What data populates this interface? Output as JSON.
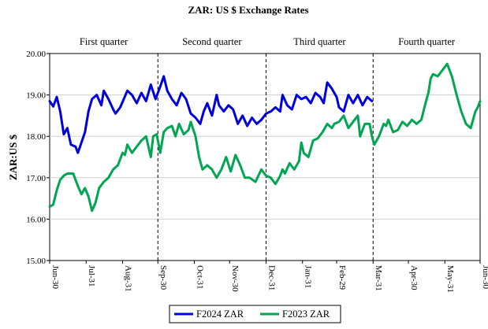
{
  "chart_data": {
    "type": "line",
    "title": "ZAR: US $ Exchange Rates",
    "ylabel": "ZAR:US $",
    "xlabel": "",
    "ylim": [
      15.0,
      20.0
    ],
    "yticks": [
      "15.00",
      "16.00",
      "17.00",
      "18.00",
      "19.00",
      "20.00"
    ],
    "x_range_days": [
      0,
      366
    ],
    "xticks": [
      {
        "label": "Jun-30",
        "day": 0
      },
      {
        "label": "Jul-31",
        "day": 31
      },
      {
        "label": "Aug-31",
        "day": 62
      },
      {
        "label": "Sep-30",
        "day": 92
      },
      {
        "label": "Oct-31",
        "day": 123
      },
      {
        "label": "Nov-30",
        "day": 153
      },
      {
        "label": "Dec-31",
        "day": 184
      },
      {
        "label": "Jan-31",
        "day": 215
      },
      {
        "label": "Feb-29",
        "day": 244
      },
      {
        "label": "Mar-31",
        "day": 275
      },
      {
        "label": "Apr-30",
        "day": 305
      },
      {
        "label": "May-31",
        "day": 336
      },
      {
        "label": "Jun-30",
        "day": 366
      }
    ],
    "quarter_dividers_days": [
      92,
      184,
      275,
      366
    ],
    "quarter_labels": [
      "First quarter",
      "Second quarter",
      "Third quarter",
      "Fourth quarter"
    ],
    "series": [
      {
        "name": "F2024 ZAR",
        "color": "#0000dd",
        "points": [
          [
            0,
            18.85
          ],
          [
            3,
            18.72
          ],
          [
            6,
            18.95
          ],
          [
            9,
            18.6
          ],
          [
            12,
            18.05
          ],
          [
            15,
            18.2
          ],
          [
            18,
            17.8
          ],
          [
            22,
            17.75
          ],
          [
            24,
            17.6
          ],
          [
            27,
            17.85
          ],
          [
            30,
            18.1
          ],
          [
            33,
            18.6
          ],
          [
            36,
            18.9
          ],
          [
            40,
            19.0
          ],
          [
            44,
            18.75
          ],
          [
            46,
            19.1
          ],
          [
            50,
            18.9
          ],
          [
            54,
            18.65
          ],
          [
            56,
            18.55
          ],
          [
            60,
            18.7
          ],
          [
            63,
            18.9
          ],
          [
            66,
            19.1
          ],
          [
            70,
            19.0
          ],
          [
            74,
            18.8
          ],
          [
            78,
            19.05
          ],
          [
            82,
            18.85
          ],
          [
            86,
            19.25
          ],
          [
            90,
            18.9
          ],
          [
            94,
            19.2
          ],
          [
            97,
            19.45
          ],
          [
            100,
            19.1
          ],
          [
            104,
            18.9
          ],
          [
            108,
            18.75
          ],
          [
            112,
            19.05
          ],
          [
            116,
            18.9
          ],
          [
            120,
            18.55
          ],
          [
            124,
            18.45
          ],
          [
            128,
            18.3
          ],
          [
            131,
            18.6
          ],
          [
            134,
            18.8
          ],
          [
            138,
            18.5
          ],
          [
            142,
            19.0
          ],
          [
            144,
            18.75
          ],
          [
            148,
            18.6
          ],
          [
            152,
            18.75
          ],
          [
            156,
            18.65
          ],
          [
            160,
            18.3
          ],
          [
            164,
            18.5
          ],
          [
            168,
            18.25
          ],
          [
            172,
            18.45
          ],
          [
            176,
            18.3
          ],
          [
            180,
            18.4
          ],
          [
            184,
            18.55
          ],
          [
            188,
            18.6
          ],
          [
            192,
            18.7
          ],
          [
            196,
            18.6
          ],
          [
            198,
            19.0
          ],
          [
            202,
            18.75
          ],
          [
            206,
            18.65
          ],
          [
            210,
            19.0
          ],
          [
            214,
            18.9
          ],
          [
            218,
            18.95
          ],
          [
            222,
            18.8
          ],
          [
            226,
            19.05
          ],
          [
            230,
            18.95
          ],
          [
            233,
            18.8
          ],
          [
            236,
            19.3
          ],
          [
            240,
            19.15
          ],
          [
            244,
            18.95
          ],
          [
            246,
            18.7
          ],
          [
            250,
            18.6
          ],
          [
            254,
            19.0
          ],
          [
            258,
            18.8
          ],
          [
            262,
            19.0
          ],
          [
            266,
            18.75
          ],
          [
            270,
            18.95
          ],
          [
            274,
            18.85
          ]
        ]
      },
      {
        "name": "F2023 ZAR",
        "color": "#00a651",
        "points": [
          [
            0,
            16.3
          ],
          [
            3,
            16.35
          ],
          [
            6,
            16.7
          ],
          [
            9,
            16.95
          ],
          [
            12,
            17.05
          ],
          [
            15,
            17.1
          ],
          [
            20,
            17.1
          ],
          [
            24,
            16.8
          ],
          [
            27,
            16.6
          ],
          [
            30,
            16.75
          ],
          [
            33,
            16.55
          ],
          [
            36,
            16.2
          ],
          [
            39,
            16.4
          ],
          [
            42,
            16.75
          ],
          [
            46,
            16.9
          ],
          [
            50,
            17.0
          ],
          [
            54,
            17.2
          ],
          [
            58,
            17.3
          ],
          [
            62,
            17.6
          ],
          [
            64,
            17.55
          ],
          [
            66,
            17.8
          ],
          [
            70,
            17.6
          ],
          [
            74,
            17.75
          ],
          [
            78,
            17.9
          ],
          [
            82,
            18.0
          ],
          [
            86,
            17.5
          ],
          [
            88,
            18.0
          ],
          [
            91,
            18.05
          ],
          [
            94,
            17.6
          ],
          [
            97,
            18.1
          ],
          [
            100,
            18.2
          ],
          [
            104,
            18.25
          ],
          [
            107,
            18.0
          ],
          [
            110,
            18.3
          ],
          [
            114,
            18.05
          ],
          [
            118,
            18.15
          ],
          [
            120,
            18.35
          ],
          [
            124,
            18.0
          ],
          [
            127,
            17.5
          ],
          [
            130,
            17.2
          ],
          [
            134,
            17.3
          ],
          [
            138,
            17.2
          ],
          [
            142,
            17.0
          ],
          [
            146,
            17.2
          ],
          [
            150,
            17.5
          ],
          [
            154,
            17.15
          ],
          [
            158,
            17.55
          ],
          [
            162,
            17.3
          ],
          [
            166,
            17.0
          ],
          [
            170,
            17.0
          ],
          [
            175,
            16.9
          ],
          [
            180,
            17.2
          ],
          [
            184,
            17.05
          ],
          [
            188,
            17.0
          ],
          [
            192,
            16.85
          ],
          [
            196,
            17.05
          ],
          [
            198,
            17.2
          ],
          [
            200,
            17.1
          ],
          [
            204,
            17.35
          ],
          [
            208,
            17.2
          ],
          [
            212,
            17.4
          ],
          [
            214,
            17.85
          ],
          [
            216,
            17.6
          ],
          [
            220,
            17.5
          ],
          [
            224,
            17.9
          ],
          [
            228,
            17.95
          ],
          [
            232,
            18.1
          ],
          [
            236,
            18.3
          ],
          [
            240,
            18.2
          ],
          [
            242,
            18.3
          ],
          [
            246,
            18.35
          ],
          [
            250,
            18.5
          ],
          [
            254,
            18.2
          ],
          [
            258,
            18.35
          ],
          [
            262,
            18.5
          ],
          [
            264,
            18.0
          ],
          [
            268,
            18.3
          ],
          [
            272,
            18.3
          ],
          [
            274,
            18.0
          ],
          [
            276,
            17.8
          ],
          [
            280,
            18.0
          ],
          [
            284,
            18.3
          ],
          [
            286,
            18.25
          ],
          [
            288,
            18.4
          ],
          [
            292,
            18.1
          ],
          [
            296,
            18.15
          ],
          [
            300,
            18.35
          ],
          [
            304,
            18.25
          ],
          [
            308,
            18.4
          ],
          [
            312,
            18.3
          ],
          [
            316,
            18.4
          ],
          [
            320,
            18.85
          ],
          [
            322,
            19.05
          ],
          [
            324,
            19.4
          ],
          [
            326,
            19.5
          ],
          [
            330,
            19.45
          ],
          [
            334,
            19.6
          ],
          [
            338,
            19.75
          ],
          [
            342,
            19.45
          ],
          [
            346,
            19.0
          ],
          [
            350,
            18.6
          ],
          [
            354,
            18.3
          ],
          [
            358,
            18.2
          ],
          [
            362,
            18.6
          ],
          [
            364,
            18.7
          ],
          [
            366,
            18.85
          ]
        ]
      }
    ],
    "legend_position": "bottom-center"
  }
}
